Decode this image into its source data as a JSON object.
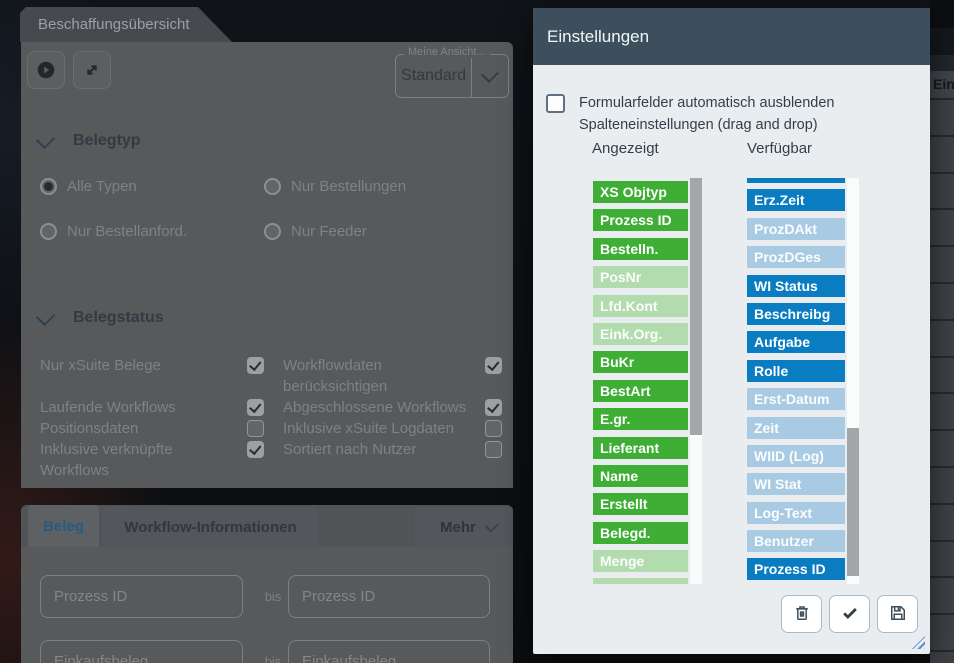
{
  "app_tab": {
    "title": "Beschaffungsübersicht"
  },
  "toolbar": {
    "buttons": [
      {
        "icon": "play-icon"
      },
      {
        "icon": "expand-icon"
      }
    ],
    "view_selector": {
      "label": "Meine Ansicht...",
      "value": "Standard",
      "dropdown_icon": "chevron-down-icon"
    }
  },
  "filter_panel": {
    "belegtyp": {
      "title": "Belegtyp",
      "collapse_icon": "chevron-down-icon",
      "radios": [
        {
          "label": "Alle Typen",
          "selected": true
        },
        {
          "label": "Nur Bestellungen",
          "selected": false
        },
        {
          "label": "Nur Bestellanford.",
          "selected": false
        },
        {
          "label": "Nur Feeder",
          "selected": false
        }
      ]
    },
    "belegstatus": {
      "title": "Belegstatus",
      "collapse_icon": "chevron-down-icon",
      "checkboxes": [
        {
          "label": "Nur xSuite Belege",
          "checked": true
        },
        {
          "label": "Workflowdaten berücksichtigen",
          "checked": true
        },
        {
          "label": "Laufende Workflows",
          "checked": true
        },
        {
          "label": "Abgeschlossene Workflows",
          "checked": true
        },
        {
          "label": "Positionsdaten",
          "checked": false
        },
        {
          "label": "Inklusive xSuite Logdaten",
          "checked": false
        },
        {
          "label": "Inklusive verknüpfte Workflows",
          "checked": true
        },
        {
          "label": "Sortiert nach Nutzer",
          "checked": false
        }
      ]
    }
  },
  "detail_panel": {
    "tabs": [
      {
        "label": "Beleg",
        "active": true
      },
      {
        "label": "Workflow-Informationen",
        "active": false
      }
    ],
    "more": {
      "label": "Mehr",
      "icon": "chevron-down-icon"
    },
    "range_rows": [
      {
        "from_placeholder": "Prozess ID",
        "separator": "bis",
        "to_placeholder": "Prozess ID"
      },
      {
        "from_placeholder": "Einkaufsbeleg",
        "separator": "bis",
        "to_placeholder": "Einkaufsbeleg"
      }
    ]
  },
  "dialog": {
    "title": "Einstellungen",
    "auto_hide_checkbox": {
      "label": "Formularfelder automatisch ausblenden",
      "checked": false
    },
    "columns_heading": "Spalteneinstellungen (drag and drop)",
    "shown_column": {
      "header": "Angezeigt",
      "items": [
        {
          "label": "XS Objtyp",
          "state": "normal"
        },
        {
          "label": "Prozess ID",
          "state": "normal"
        },
        {
          "label": "Bestelln.",
          "state": "normal"
        },
        {
          "label": "PosNr",
          "state": "muted"
        },
        {
          "label": "Lfd.Kont",
          "state": "muted"
        },
        {
          "label": "Eink.Org.",
          "state": "muted"
        },
        {
          "label": "BuKr",
          "state": "normal"
        },
        {
          "label": "BestArt",
          "state": "normal"
        },
        {
          "label": "E.gr.",
          "state": "normal"
        },
        {
          "label": "Lieferant",
          "state": "normal"
        },
        {
          "label": "Name",
          "state": "normal"
        },
        {
          "label": "Erstellt",
          "state": "normal"
        },
        {
          "label": "Belegd.",
          "state": "normal"
        },
        {
          "label": "Menge",
          "state": "muted"
        },
        {
          "label": "",
          "state": "muted"
        }
      ]
    },
    "available_column": {
      "header": "Verfügbar",
      "items": [
        {
          "label": "",
          "state": "normal"
        },
        {
          "label": "Erz.Zeit",
          "state": "normal"
        },
        {
          "label": "ProzDAkt",
          "state": "muted"
        },
        {
          "label": "ProzDGes",
          "state": "muted"
        },
        {
          "label": "WI Status",
          "state": "normal"
        },
        {
          "label": "Beschreibg",
          "state": "normal"
        },
        {
          "label": "Aufgabe",
          "state": "normal"
        },
        {
          "label": "Rolle",
          "state": "normal"
        },
        {
          "label": "Erst-Datum",
          "state": "muted"
        },
        {
          "label": "Zeit",
          "state": "muted"
        },
        {
          "label": "WIID (Log)",
          "state": "muted"
        },
        {
          "label": "WI Stat",
          "state": "muted"
        },
        {
          "label": "Log-Text",
          "state": "muted"
        },
        {
          "label": "Benutzer",
          "state": "muted"
        },
        {
          "label": "Prozess ID",
          "state": "normal"
        }
      ]
    },
    "footer_buttons": [
      {
        "name": "delete-button",
        "icon": "trash-icon"
      },
      {
        "name": "apply-button",
        "icon": "check-icon"
      },
      {
        "name": "save-button",
        "icon": "save-icon"
      }
    ],
    "colors": {
      "header_bg": "#3d4f5c",
      "body_bg": "#e9edf0",
      "shown_normal": "#3fae35",
      "shown_muted": "#b2dbae",
      "available_normal": "#0a7dc2",
      "available_muted": "#a8cbe3"
    }
  },
  "background_table": {
    "header_fragment": "Ein",
    "visible_rows": 16
  }
}
